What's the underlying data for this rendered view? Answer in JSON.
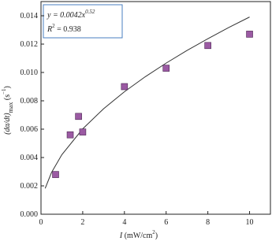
{
  "chart_data": {
    "type": "scatter",
    "x": [
      0.7,
      1.4,
      1.8,
      2.0,
      4.0,
      6.0,
      8.0,
      10.0
    ],
    "values": [
      0.0028,
      0.0056,
      0.0069,
      0.0058,
      0.009,
      0.0103,
      0.0119,
      0.0127
    ],
    "color": "#9b5aa3",
    "fit": {
      "x": [
        0.2,
        0.5,
        1,
        2,
        3,
        4,
        5,
        6,
        7,
        8,
        9,
        10
      ],
      "values": [
        0.00182,
        0.00293,
        0.0042,
        0.00602,
        0.00744,
        0.00864,
        0.0097,
        0.01066,
        0.01155,
        0.01238,
        0.01317,
        0.01391
      ],
      "color": "#333333"
    },
    "annotation": {
      "eq": "y = 0.0042x",
      "eq_sup": "0.52",
      "r": "R",
      "r_sup": "2",
      "r_rest": " = 0.938"
    },
    "xlabel": {
      "main": "I",
      "unit": " (mW/cm",
      "unit_sup": "2",
      "close": ")"
    },
    "ylabel": {
      "main": "(dα/dt)",
      "sub": "max",
      "unit": " (s",
      "unit_sup": "−1",
      "close": ")"
    },
    "xlim": [
      0,
      11
    ],
    "ylim": [
      0,
      0.015
    ],
    "xticks": [
      0,
      2,
      4,
      6,
      8,
      10
    ],
    "yticks": [
      {
        "value": 0,
        "label": "0.000"
      },
      {
        "value": 0.002,
        "label": "0.002"
      },
      {
        "value": 0.004,
        "label": "0.004"
      },
      {
        "value": 0.006,
        "label": "0.006"
      },
      {
        "value": 0.008,
        "label": "0.008"
      },
      {
        "value": 0.01,
        "label": "0.010"
      },
      {
        "value": 0.012,
        "label": "0.012"
      },
      {
        "value": 0.014,
        "label": "0.014"
      }
    ]
  }
}
